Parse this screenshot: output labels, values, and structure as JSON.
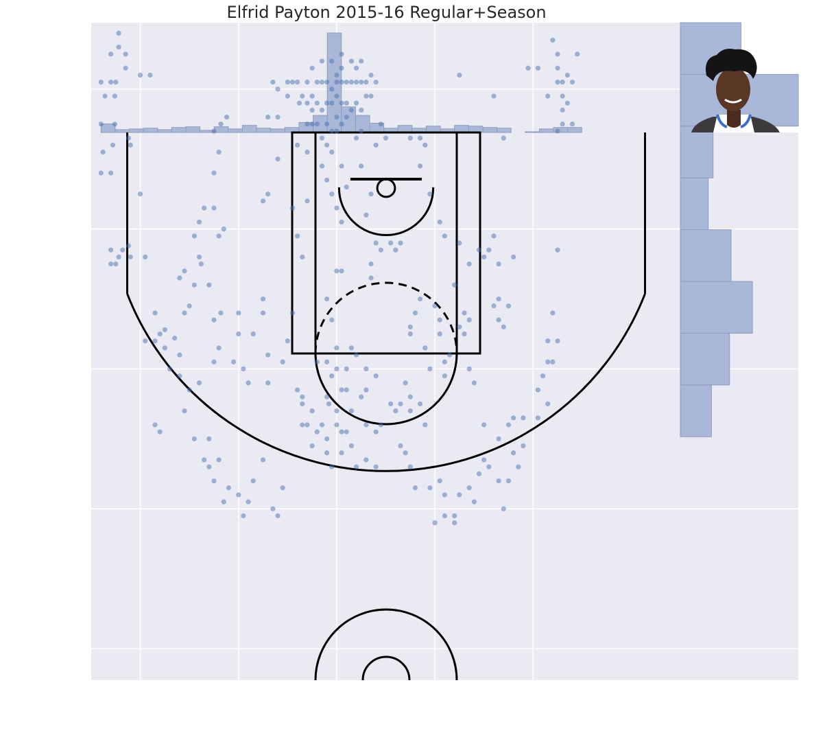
{
  "title": "Elfrid Payton 2015-16 Regular+Season",
  "colors": {
    "background": "#e9eaf2",
    "grid": "#ffffff",
    "court_lines": "#000000",
    "shots": "#4c72b0",
    "histogram_fill": "#a9b8d8",
    "histogram_edge": "#8e9cbd"
  },
  "player_photo": {
    "description_icon": "player-headshot-icon"
  },
  "chart_data": {
    "type": "scatter",
    "title": "Elfrid Payton 2015-16 Regular+Season",
    "xlabel": "",
    "ylabel": "",
    "xlim": [
      -250,
      350
    ],
    "ylim": [
      422.5,
      -47.5
    ],
    "grid": true,
    "x_histogram_bins": {
      "start": -240,
      "width": 14.4,
      "counts": [
        6,
        2,
        2.5,
        3,
        2,
        3.5,
        4,
        1.5,
        4,
        2.5,
        5,
        3,
        2.5,
        3.5,
        7,
        12,
        70,
        18,
        12,
        6.5,
        3,
        5,
        3,
        4.5,
        2.5,
        5,
        4.5,
        3.5,
        3,
        0,
        0.5,
        2.5,
        3.5,
        3.5
      ]
    },
    "y_histogram_bins": {
      "start": -47.5,
      "width": 37,
      "counts": [
        37,
        72,
        20,
        17,
        31,
        44,
        30,
        19
      ]
    },
    "points": [
      {
        "x": -240,
        "y": -5
      },
      {
        "x": -230,
        "y": -5
      },
      {
        "x": -225,
        "y": -5
      },
      {
        "x": -236,
        "y": 5
      },
      {
        "x": -226,
        "y": 5
      },
      {
        "x": -240,
        "y": 25
      },
      {
        "x": -226,
        "y": 25
      },
      {
        "x": -238,
        "y": 45
      },
      {
        "x": -228,
        "y": 40
      },
      {
        "x": -210,
        "y": 40
      },
      {
        "x": -240,
        "y": 60
      },
      {
        "x": -230,
        "y": 60
      },
      {
        "x": -230,
        "y": -25
      },
      {
        "x": -222,
        "y": -40
      },
      {
        "x": -215,
        "y": -15
      },
      {
        "x": -215,
        "y": -25
      },
      {
        "x": -222,
        "y": -30
      },
      {
        "x": -200,
        "y": -10
      },
      {
        "x": -190,
        "y": -10
      },
      {
        "x": -212,
        "y": 35
      },
      {
        "x": -222,
        "y": 120
      },
      {
        "x": -225,
        "y": 125
      },
      {
        "x": -218,
        "y": 115
      },
      {
        "x": -230,
        "y": 115
      },
      {
        "x": -230,
        "y": 125
      },
      {
        "x": -212,
        "y": 112
      },
      {
        "x": -210,
        "y": 120
      },
      {
        "x": -200,
        "y": 75
      },
      {
        "x": -195,
        "y": 120
      },
      {
        "x": -185,
        "y": 160
      },
      {
        "x": -180,
        "y": 175
      },
      {
        "x": -195,
        "y": 180
      },
      {
        "x": -185,
        "y": 180
      },
      {
        "x": -175,
        "y": 185
      },
      {
        "x": -175,
        "y": 172
      },
      {
        "x": -165,
        "y": 178
      },
      {
        "x": -160,
        "y": 190
      },
      {
        "x": -155,
        "y": 160
      },
      {
        "x": -185,
        "y": 240
      },
      {
        "x": -180,
        "y": 245
      },
      {
        "x": -170,
        "y": 200
      },
      {
        "x": -160,
        "y": 205
      },
      {
        "x": -155,
        "y": 230
      },
      {
        "x": -150,
        "y": 215
      },
      {
        "x": -140,
        "y": 210
      },
      {
        "x": -130,
        "y": 250
      },
      {
        "x": -120,
        "y": 265
      },
      {
        "x": -160,
        "y": 135
      },
      {
        "x": -155,
        "y": 130
      },
      {
        "x": -150,
        "y": 155
      },
      {
        "x": -145,
        "y": 140
      },
      {
        "x": -140,
        "y": 120
      },
      {
        "x": -138,
        "y": 125
      },
      {
        "x": -145,
        "y": 105
      },
      {
        "x": -140,
        "y": 95
      },
      {
        "x": -135,
        "y": 85
      },
      {
        "x": -130,
        "y": 140
      },
      {
        "x": -125,
        "y": 165
      },
      {
        "x": -125,
        "y": 195
      },
      {
        "x": -120,
        "y": 185
      },
      {
        "x": -118,
        "y": 160
      },
      {
        "x": -105,
        "y": 195
      },
      {
        "x": -100,
        "y": 175
      },
      {
        "x": -100,
        "y": 160
      },
      {
        "x": -95,
        "y": 200
      },
      {
        "x": -90,
        "y": 210
      },
      {
        "x": -85,
        "y": 175
      },
      {
        "x": -120,
        "y": 105
      },
      {
        "x": -115,
        "y": 100
      },
      {
        "x": -125,
        "y": 85
      },
      {
        "x": -125,
        "y": 60
      },
      {
        "x": -120,
        "y": 45
      },
      {
        "x": -112,
        "y": 20
      },
      {
        "x": -118,
        "y": 25
      },
      {
        "x": -125,
        "y": 30
      },
      {
        "x": -145,
        "y": 250
      },
      {
        "x": -135,
        "y": 265
      },
      {
        "x": -130,
        "y": 270
      },
      {
        "x": -125,
        "y": 280
      },
      {
        "x": -115,
        "y": 295
      },
      {
        "x": -110,
        "y": 285
      },
      {
        "x": -100,
        "y": 290
      },
      {
        "x": -95,
        "y": 305
      },
      {
        "x": -90,
        "y": 295
      },
      {
        "x": -85,
        "y": 280
      },
      {
        "x": -75,
        "y": 265
      },
      {
        "x": -65,
        "y": 300
      },
      {
        "x": -60,
        "y": 305
      },
      {
        "x": -55,
        "y": 285
      },
      {
        "x": -75,
        "y": 160
      },
      {
        "x": -75,
        "y": 150
      },
      {
        "x": -70,
        "y": 190
      },
      {
        "x": -70,
        "y": 210
      },
      {
        "x": -55,
        "y": 195
      },
      {
        "x": -50,
        "y": 180
      },
      {
        "x": -45,
        "y": 160
      },
      {
        "x": -40,
        "y": 215
      },
      {
        "x": -35,
        "y": 220
      },
      {
        "x": -30,
        "y": 240
      },
      {
        "x": -35,
        "y": 225
      },
      {
        "x": -70,
        "y": 75
      },
      {
        "x": -70,
        "y": 20
      },
      {
        "x": -75,
        "y": 80
      },
      {
        "x": -65,
        "y": -5
      },
      {
        "x": -60,
        "y": 50
      },
      {
        "x": -60,
        "y": 20
      },
      {
        "x": -50,
        "y": 5
      },
      {
        "x": -45,
        "y": -5
      },
      {
        "x": -40,
        "y": 40
      },
      {
        "x": -38,
        "y": 10
      },
      {
        "x": -30,
        "y": 25
      },
      {
        "x": -25,
        "y": 25
      },
      {
        "x": -60,
        "y": 0
      },
      {
        "x": -50,
        "y": -5
      },
      {
        "x": -40,
        "y": -5
      },
      {
        "x": -35,
        "y": 5
      },
      {
        "x": -30,
        "y": -5
      },
      {
        "x": -25,
        "y": 5
      },
      {
        "x": -20,
        "y": -5
      },
      {
        "x": -15,
        "y": -5
      },
      {
        "x": -10,
        "y": -5
      },
      {
        "x": -5,
        "y": 0
      },
      {
        "x": 0,
        "y": -10
      },
      {
        "x": 5,
        "y": -5
      },
      {
        "x": 10,
        "y": -5
      },
      {
        "x": 15,
        "y": -5
      },
      {
        "x": 20,
        "y": -5
      },
      {
        "x": 25,
        "y": -5
      },
      {
        "x": 30,
        "y": -5
      },
      {
        "x": 35,
        "y": -10
      },
      {
        "x": 40,
        "y": -5
      },
      {
        "x": -30,
        "y": 10
      },
      {
        "x": -25,
        "y": 15
      },
      {
        "x": -20,
        "y": 10
      },
      {
        "x": -15,
        "y": 15
      },
      {
        "x": -10,
        "y": 10
      },
      {
        "x": -5,
        "y": 10
      },
      {
        "x": 0,
        "y": 5
      },
      {
        "x": 5,
        "y": 10
      },
      {
        "x": 10,
        "y": 10
      },
      {
        "x": 15,
        "y": 15
      },
      {
        "x": 20,
        "y": 10
      },
      {
        "x": 25,
        "y": 15
      },
      {
        "x": 30,
        "y": 5
      },
      {
        "x": 35,
        "y": 5
      },
      {
        "x": -20,
        "y": 25
      },
      {
        "x": -10,
        "y": 25
      },
      {
        "x": 0,
        "y": 20
      },
      {
        "x": 5,
        "y": 25
      },
      {
        "x": 10,
        "y": 20
      },
      {
        "x": -15,
        "y": 35
      },
      {
        "x": -5,
        "y": 30
      },
      {
        "x": 0,
        "y": 30
      },
      {
        "x": -30,
        "y": 45
      },
      {
        "x": -10,
        "y": 40
      },
      {
        "x": -5,
        "y": 45
      },
      {
        "x": 5,
        "y": -15
      },
      {
        "x": 5,
        "y": -25
      },
      {
        "x": -5,
        "y": -20
      },
      {
        "x": -15,
        "y": -20
      },
      {
        "x": -25,
        "y": -15
      },
      {
        "x": 25,
        "y": -20
      },
      {
        "x": 20,
        "y": -15
      },
      {
        "x": 15,
        "y": -20
      },
      {
        "x": 0,
        "y": -5
      },
      {
        "x": -15,
        "y": 55
      },
      {
        "x": 5,
        "y": 55
      },
      {
        "x": 25,
        "y": 55
      },
      {
        "x": 40,
        "y": 40
      },
      {
        "x": 45,
        "y": 25
      },
      {
        "x": 25,
        "y": 30
      },
      {
        "x": 20,
        "y": 35
      },
      {
        "x": -10,
        "y": 65
      },
      {
        "x": -5,
        "y": 75
      },
      {
        "x": 0,
        "y": 85
      },
      {
        "x": 10,
        "y": 70
      },
      {
        "x": 5,
        "y": 95
      },
      {
        "x": -30,
        "y": 80
      },
      {
        "x": -45,
        "y": 85
      },
      {
        "x": -40,
        "y": 105
      },
      {
        "x": -35,
        "y": 120
      },
      {
        "x": 0,
        "y": 130
      },
      {
        "x": 5,
        "y": 130
      },
      {
        "x": -10,
        "y": 150
      },
      {
        "x": -5,
        "y": 165
      },
      {
        "x": -5,
        "y": 205
      },
      {
        "x": 5,
        "y": 215
      },
      {
        "x": -8,
        "y": 225
      },
      {
        "x": 0,
        "y": 230
      },
      {
        "x": 10,
        "y": 215
      },
      {
        "x": -10,
        "y": 220
      },
      {
        "x": 0,
        "y": 200
      },
      {
        "x": -15,
        "y": 240
      },
      {
        "x": 5,
        "y": 245
      },
      {
        "x": -20,
        "y": 245
      },
      {
        "x": -10,
        "y": 250
      },
      {
        "x": 0,
        "y": 240
      },
      {
        "x": 10,
        "y": 245
      },
      {
        "x": -25,
        "y": 255
      },
      {
        "x": 5,
        "y": 260
      },
      {
        "x": 15,
        "y": 255
      },
      {
        "x": -25,
        "y": 230
      },
      {
        "x": -35,
        "y": 240
      },
      {
        "x": -10,
        "y": 260
      },
      {
        "x": -5,
        "y": 270
      },
      {
        "x": 20,
        "y": 270
      },
      {
        "x": 30,
        "y": 265
      },
      {
        "x": 40,
        "y": 270
      },
      {
        "x": 0,
        "y": 185
      },
      {
        "x": -20,
        "y": 195
      },
      {
        "x": -10,
        "y": 195
      },
      {
        "x": 10,
        "y": 200
      },
      {
        "x": 20,
        "y": 190
      },
      {
        "x": 30,
        "y": 200
      },
      {
        "x": 15,
        "y": 185
      },
      {
        "x": 40,
        "y": 205
      },
      {
        "x": 30,
        "y": 215
      },
      {
        "x": 25,
        "y": 220
      },
      {
        "x": 45,
        "y": 240
      },
      {
        "x": 40,
        "y": 245
      },
      {
        "x": 15,
        "y": 230
      },
      {
        "x": 30,
        "y": 240
      },
      {
        "x": 35,
        "y": 75
      },
      {
        "x": 30,
        "y": 90
      },
      {
        "x": 40,
        "y": 110
      },
      {
        "x": 35,
        "y": 125
      },
      {
        "x": 45,
        "y": 115
      },
      {
        "x": 55,
        "y": 110
      },
      {
        "x": 60,
        "y": 115
      },
      {
        "x": 65,
        "y": 110
      },
      {
        "x": 35,
        "y": 135
      },
      {
        "x": 50,
        "y": 35
      },
      {
        "x": 55,
        "y": 225
      },
      {
        "x": 60,
        "y": 230
      },
      {
        "x": 65,
        "y": 225
      },
      {
        "x": 70,
        "y": 210
      },
      {
        "x": 75,
        "y": 220
      },
      {
        "x": 75,
        "y": 230
      },
      {
        "x": 85,
        "y": 225
      },
      {
        "x": 90,
        "y": 240
      },
      {
        "x": 65,
        "y": 255
      },
      {
        "x": 70,
        "y": 260
      },
      {
        "x": 75,
        "y": 270
      },
      {
        "x": 80,
        "y": 285
      },
      {
        "x": 95,
        "y": 285
      },
      {
        "x": 105,
        "y": 280
      },
      {
        "x": 110,
        "y": 290
      },
      {
        "x": 75,
        "y": 175
      },
      {
        "x": 75,
        "y": 170
      },
      {
        "x": 80,
        "y": 160
      },
      {
        "x": 85,
        "y": 150
      },
      {
        "x": 90,
        "y": 185
      },
      {
        "x": 95,
        "y": 200
      },
      {
        "x": 105,
        "y": 175
      },
      {
        "x": 105,
        "y": 165
      },
      {
        "x": 110,
        "y": 205
      },
      {
        "x": 115,
        "y": 190
      },
      {
        "x": 110,
        "y": 195
      },
      {
        "x": 75,
        "y": 35
      },
      {
        "x": 85,
        "y": 35
      },
      {
        "x": 90,
        "y": 40
      },
      {
        "x": 85,
        "y": 55
      },
      {
        "x": 95,
        "y": 75
      },
      {
        "x": 105,
        "y": 95
      },
      {
        "x": 110,
        "y": 105
      },
      {
        "x": 100,
        "y": 155
      },
      {
        "x": 100,
        "y": 310
      },
      {
        "x": 110,
        "y": 305
      },
      {
        "x": 120,
        "y": 310
      },
      {
        "x": 120,
        "y": 305
      },
      {
        "x": 125,
        "y": 290
      },
      {
        "x": 135,
        "y": 285
      },
      {
        "x": 140,
        "y": 295
      },
      {
        "x": 145,
        "y": 275
      },
      {
        "x": 155,
        "y": 270
      },
      {
        "x": 165,
        "y": 280
      },
      {
        "x": 170,
        "y": 300
      },
      {
        "x": 175,
        "y": 280
      },
      {
        "x": 120,
        "y": 140
      },
      {
        "x": 125,
        "y": 170
      },
      {
        "x": 130,
        "y": 160
      },
      {
        "x": 135,
        "y": 165
      },
      {
        "x": 130,
        "y": 175
      },
      {
        "x": 135,
        "y": 200
      },
      {
        "x": 140,
        "y": 210
      },
      {
        "x": 150,
        "y": 240
      },
      {
        "x": 160,
        "y": 155
      },
      {
        "x": 165,
        "y": 150
      },
      {
        "x": 170,
        "y": 170
      },
      {
        "x": 165,
        "y": 165
      },
      {
        "x": 175,
        "y": 155
      },
      {
        "x": 125,
        "y": 110
      },
      {
        "x": 135,
        "y": 125
      },
      {
        "x": 145,
        "y": 115
      },
      {
        "x": 150,
        "y": 120
      },
      {
        "x": 155,
        "y": 115
      },
      {
        "x": 160,
        "y": 105
      },
      {
        "x": 165,
        "y": 125
      },
      {
        "x": 150,
        "y": 265
      },
      {
        "x": 165,
        "y": 250
      },
      {
        "x": 175,
        "y": 240
      },
      {
        "x": 180,
        "y": 235
      },
      {
        "x": 180,
        "y": 260
      },
      {
        "x": 190,
        "y": 255
      },
      {
        "x": 185,
        "y": 270
      },
      {
        "x": 190,
        "y": 235
      },
      {
        "x": 205,
        "y": 235
      },
      {
        "x": 215,
        "y": 225
      },
      {
        "x": 125,
        "y": -10
      },
      {
        "x": 160,
        "y": 5
      },
      {
        "x": 170,
        "y": 35
      },
      {
        "x": 180,
        "y": 120
      },
      {
        "x": 195,
        "y": -15
      },
      {
        "x": 205,
        "y": -15
      },
      {
        "x": 215,
        "y": 5
      },
      {
        "x": 205,
        "y": 215
      },
      {
        "x": 210,
        "y": 205
      },
      {
        "x": 220,
        "y": 160
      },
      {
        "x": 215,
        "y": 195
      },
      {
        "x": 220,
        "y": 195
      },
      {
        "x": 225,
        "y": 180
      },
      {
        "x": 215,
        "y": 180
      },
      {
        "x": 225,
        "y": 115
      },
      {
        "x": 220,
        "y": -35
      },
      {
        "x": 225,
        "y": -5
      },
      {
        "x": 230,
        "y": -5
      },
      {
        "x": 225,
        "y": -25
      },
      {
        "x": 225,
        "y": -15
      },
      {
        "x": 235,
        "y": -10
      },
      {
        "x": 230,
        "y": 5
      },
      {
        "x": 230,
        "y": 15
      },
      {
        "x": 230,
        "y": 25
      },
      {
        "x": 235,
        "y": 10
      },
      {
        "x": 225,
        "y": 30
      },
      {
        "x": 240,
        "y": -5
      },
      {
        "x": 240,
        "y": 25
      },
      {
        "x": 245,
        "y": -25
      }
    ]
  }
}
